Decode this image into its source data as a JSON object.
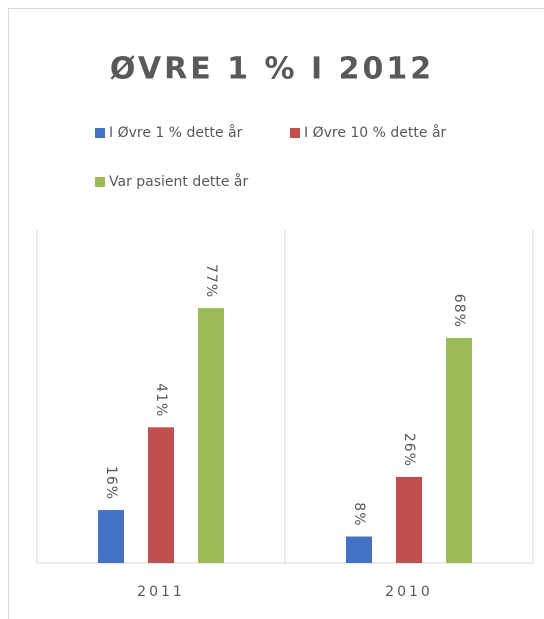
{
  "chart_data": {
    "type": "bar",
    "title": "ØVRE 1 % I 2012",
    "categories": [
      "2011",
      "2010"
    ],
    "series": [
      {
        "name": "I Øvre 1 % dette år",
        "color": "#4472c4",
        "values": [
          16,
          8
        ],
        "value_labels": [
          "16%",
          "8%"
        ]
      },
      {
        "name": "I Øvre 10 % dette år",
        "color": "#c0504d",
        "values": [
          41,
          26
        ],
        "value_labels": [
          "41%",
          "26%"
        ]
      },
      {
        "name": "Var pasient dette år",
        "color": "#9bbb59",
        "values": [
          77,
          68
        ],
        "value_labels": [
          "77%",
          "68%"
        ]
      }
    ]
  }
}
